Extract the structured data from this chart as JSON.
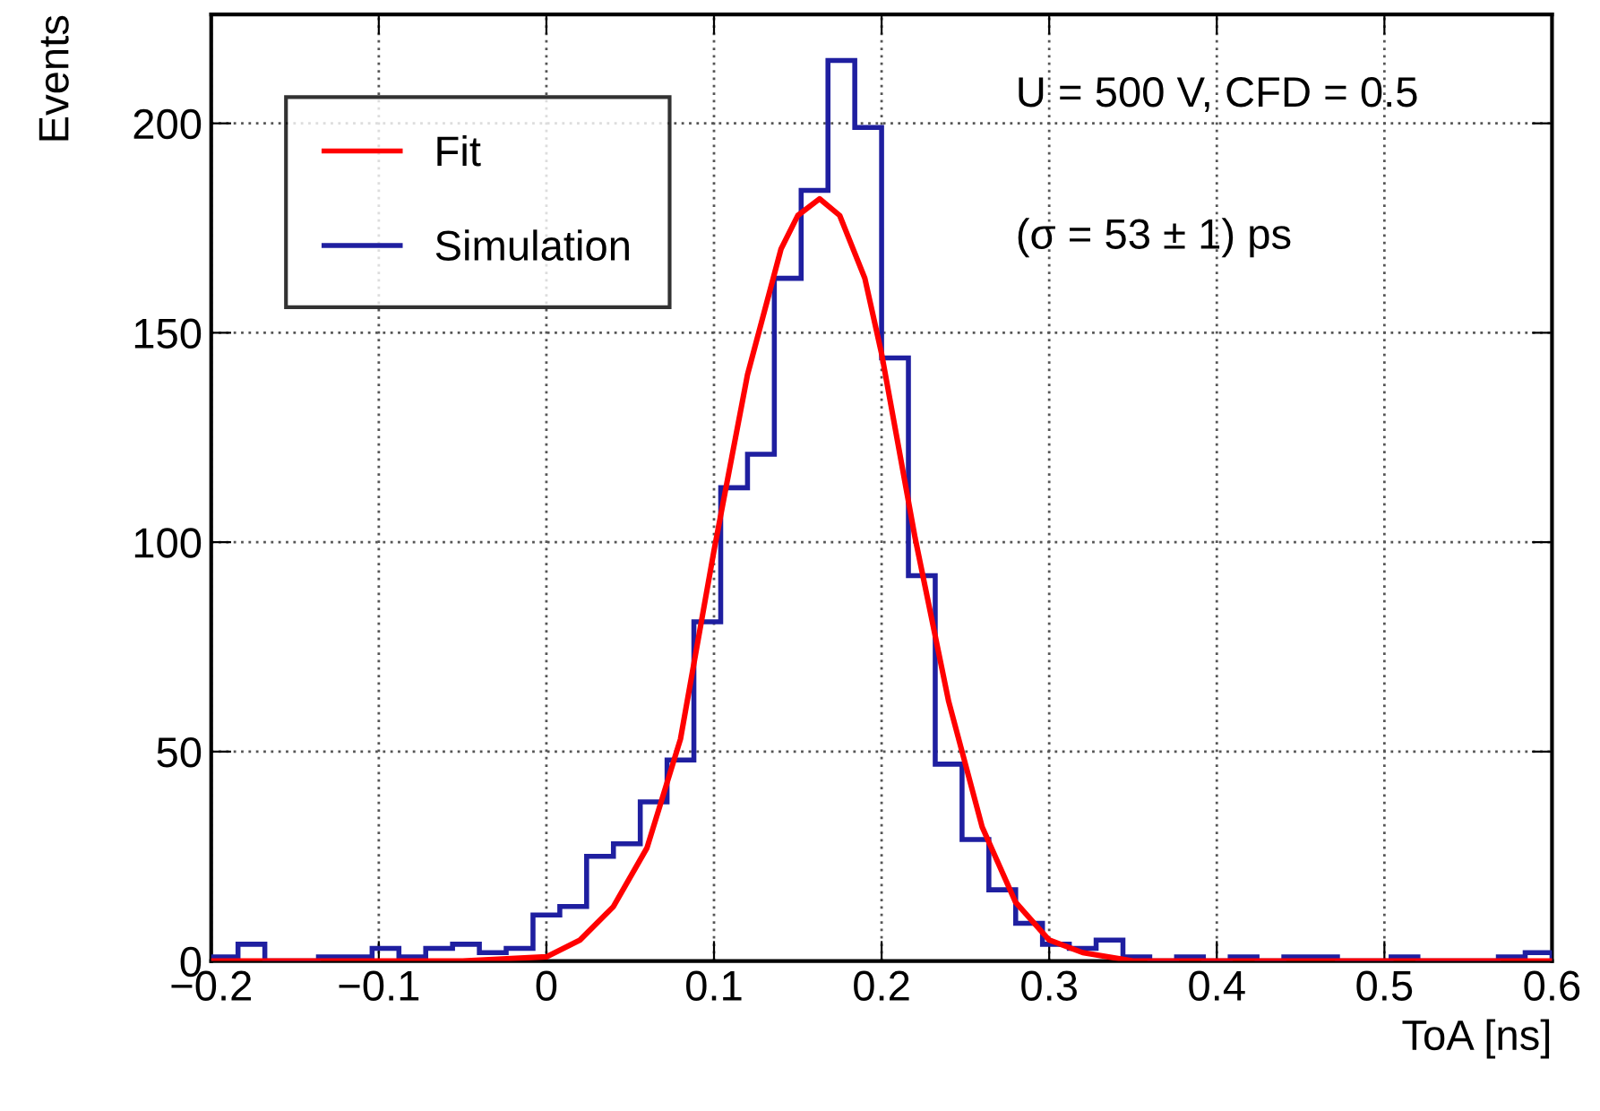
{
  "chart_data": {
    "type": "histogram",
    "xlabel": "ToA [ns]",
    "ylabel": "Events",
    "bins": [
      -0.2,
      -0.184,
      -0.168,
      -0.152,
      -0.136,
      -0.12,
      -0.104,
      -0.088,
      -0.072,
      -0.056,
      -0.04,
      -0.024,
      -0.008,
      0.008,
      0.024,
      0.04,
      0.056,
      0.072,
      0.088,
      0.104,
      0.12,
      0.136,
      0.152,
      0.168,
      0.184,
      0.2,
      0.216,
      0.232,
      0.248,
      0.264,
      0.28,
      0.296,
      0.312,
      0.328,
      0.344,
      0.36,
      0.376,
      0.392,
      0.408,
      0.424,
      0.44,
      0.456,
      0.472,
      0.488,
      0.504,
      0.52,
      0.536,
      0.552,
      0.568,
      0.584,
      0.6
    ],
    "series": [
      {
        "name": "Fit",
        "type": "line",
        "color": "#ff0000",
        "x": [
          -0.2,
          -0.05,
          0,
          0.02,
          0.04,
          0.06,
          0.08,
          0.1,
          0.12,
          0.14,
          0.15,
          0.163,
          0.175,
          0.19,
          0.2,
          0.22,
          0.24,
          0.26,
          0.28,
          0.3,
          0.32,
          0.35,
          0.6
        ],
        "values": [
          0,
          0,
          1,
          5,
          13,
          27,
          53,
          98,
          140,
          170,
          178,
          182,
          178,
          163,
          145,
          101,
          62,
          32,
          14,
          5,
          2,
          0,
          0
        ]
      },
      {
        "name": "Simulation",
        "color": "#1f1fa0",
        "values": [
          1,
          4,
          0,
          0,
          1,
          1,
          3,
          1,
          3,
          4,
          2,
          3,
          11,
          13,
          25,
          28,
          38,
          48,
          81,
          113,
          121,
          163,
          184,
          215,
          199,
          144,
          92,
          47,
          29,
          17,
          9,
          4,
          3,
          5,
          1,
          0,
          1,
          0,
          1,
          0,
          1,
          1,
          0,
          0,
          1,
          0,
          0,
          0,
          1,
          2
        ]
      }
    ],
    "xlim": [
      -0.2,
      0.6
    ],
    "ylim": [
      0,
      226
    ],
    "xticks": [
      {
        "value": -0.2,
        "label": "−0.2"
      },
      {
        "value": -0.1,
        "label": "−0.1"
      },
      0,
      0.1,
      0.2,
      0.3,
      0.4,
      0.5,
      0.6
    ],
    "yticks": [
      0,
      50,
      100,
      150,
      200
    ],
    "annotations": [
      "U = 500 V, CFD = 0.5",
      "(σ = 53 ± 1) ps"
    ],
    "grid": true,
    "legend": "top left"
  }
}
